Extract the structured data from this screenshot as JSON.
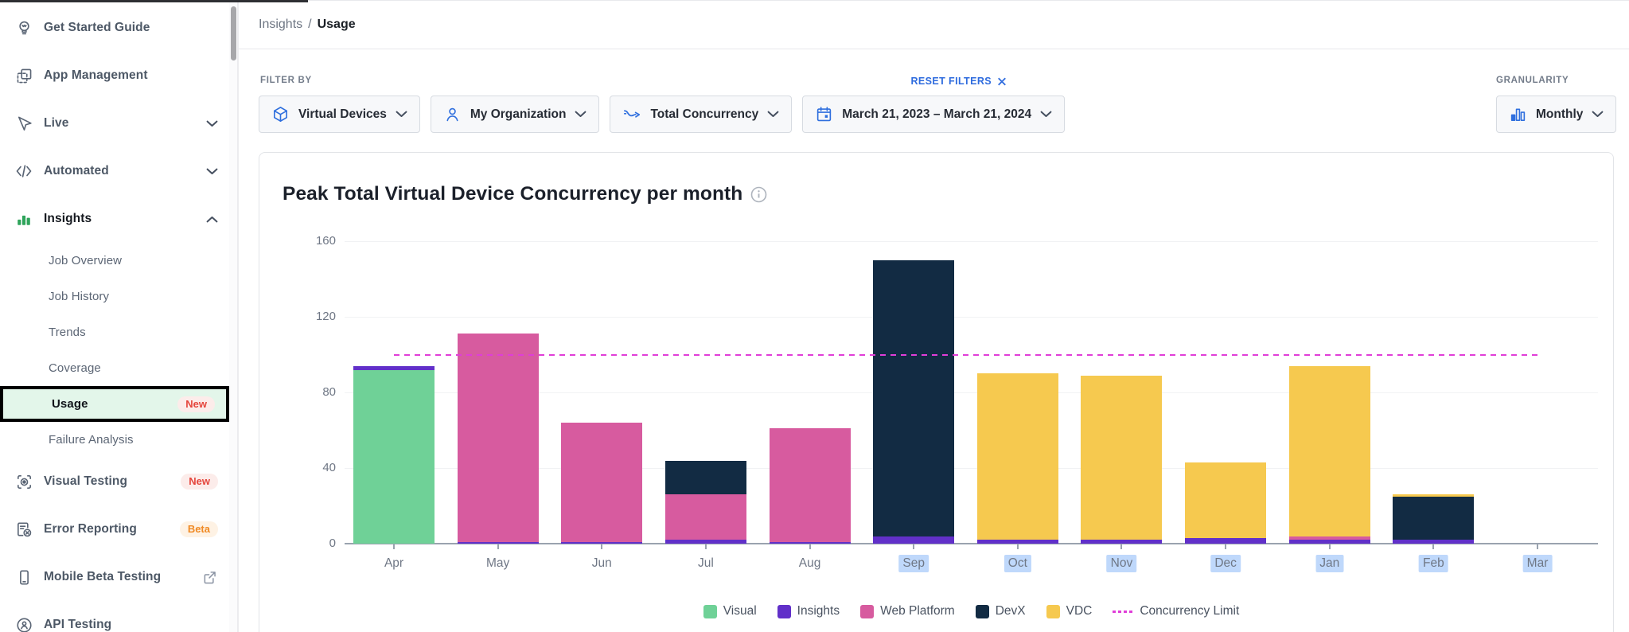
{
  "sidebar": {
    "items": [
      {
        "id": "get-started-guide",
        "label": "Get Started Guide",
        "icon": "lightbulb-icon",
        "level": "top"
      },
      {
        "id": "app-management",
        "label": "App Management",
        "icon": "apps-icon",
        "level": "top"
      },
      {
        "id": "live",
        "label": "Live",
        "icon": "cursor-icon",
        "level": "top",
        "chevron": "down"
      },
      {
        "id": "automated",
        "label": "Automated",
        "icon": "code-icon",
        "level": "top",
        "chevron": "down"
      },
      {
        "id": "insights",
        "label": "Insights",
        "icon": "bar-chart-icon",
        "level": "top",
        "chevron": "up",
        "active": true
      },
      {
        "id": "job-overview",
        "label": "Job Overview",
        "level": "sub"
      },
      {
        "id": "job-history",
        "label": "Job History",
        "level": "sub"
      },
      {
        "id": "trends",
        "label": "Trends",
        "level": "sub"
      },
      {
        "id": "coverage",
        "label": "Coverage",
        "level": "sub"
      },
      {
        "id": "usage",
        "label": "Usage",
        "level": "sub",
        "selected": true,
        "badge": {
          "text": "New",
          "style": "new"
        }
      },
      {
        "id": "failure-analysis",
        "label": "Failure Analysis",
        "level": "sub"
      },
      {
        "id": "visual-testing",
        "label": "Visual Testing",
        "icon": "eye-icon",
        "level": "top",
        "badge": {
          "text": "New",
          "style": "new"
        }
      },
      {
        "id": "error-reporting",
        "label": "Error Reporting",
        "icon": "report-error-icon",
        "level": "top",
        "badge": {
          "text": "Beta",
          "style": "beta"
        }
      },
      {
        "id": "mobile-beta-testing",
        "label": "Mobile Beta Testing",
        "icon": "phone-icon",
        "level": "top",
        "trailing_icon": "external-link-icon"
      },
      {
        "id": "api-testing",
        "label": "API Testing",
        "icon": "api-icon",
        "level": "top"
      }
    ]
  },
  "breadcrumb": {
    "section": "Insights",
    "separator": "/",
    "current": "Usage"
  },
  "filters": {
    "label": "FILTER BY",
    "reset_label": "RESET FILTERS",
    "reset_icon": "close-icon",
    "chips": [
      {
        "icon": "cube-icon",
        "label": "Virtual Devices"
      },
      {
        "icon": "person-icon",
        "label": "My Organization"
      },
      {
        "icon": "trend-icon",
        "label": "Total Concurrency"
      },
      {
        "icon": "calendar-icon",
        "label": "March 21, 2023 – March 21, 2024"
      }
    ],
    "granularity": {
      "label": "GRANULARITY",
      "value": "Monthly",
      "icon": "bar-columns-icon"
    }
  },
  "chart_data": {
    "type": "bar",
    "stacked": true,
    "title": "Peak Total Virtual Device Concurrency per month",
    "categories": [
      "Apr",
      "May",
      "Jun",
      "Jul",
      "Aug",
      "Sep",
      "Oct",
      "Nov",
      "Dec",
      "Jan",
      "Feb",
      "Mar"
    ],
    "series": [
      {
        "name": "Visual",
        "color": "#6fd197",
        "values": [
          92,
          0,
          0,
          0,
          0,
          0,
          0,
          0,
          0,
          0,
          0,
          0
        ]
      },
      {
        "name": "Insights",
        "color": "#6130c9",
        "values": [
          2,
          1,
          1,
          2,
          1,
          4,
          2,
          2,
          3,
          2,
          2,
          0
        ]
      },
      {
        "name": "Web Platform",
        "color": "#d75b9f",
        "values": [
          0,
          110,
          63,
          24,
          60,
          0,
          0,
          0,
          0,
          2,
          0,
          0
        ]
      },
      {
        "name": "DevX",
        "color": "#122b43",
        "values": [
          0,
          0,
          0,
          18,
          0,
          146,
          0,
          0,
          0,
          0,
          23,
          0
        ]
      },
      {
        "name": "VDC",
        "color": "#f6c94f",
        "values": [
          0,
          0,
          0,
          0,
          0,
          0,
          88,
          87,
          40,
          90,
          1,
          0
        ]
      }
    ],
    "limit_line": {
      "label": "Concurrency Limit",
      "value": 100,
      "color": "#e03ed8"
    },
    "ylim": [
      0,
      160
    ],
    "yticks": [
      0,
      40,
      80,
      120,
      160
    ],
    "grid": true,
    "legend_position": "bottom",
    "highlighted_categories": [
      "Sep",
      "Oct",
      "Nov",
      "Dec",
      "Jan",
      "Feb",
      "Mar"
    ],
    "highlight_color": "#bfd8fb"
  },
  "colors": {
    "accent_blue": "#2f6fde",
    "badge_red": "#e5463d",
    "badge_orange": "#f08a24",
    "selected_row_bg": "#e3f6ea"
  }
}
